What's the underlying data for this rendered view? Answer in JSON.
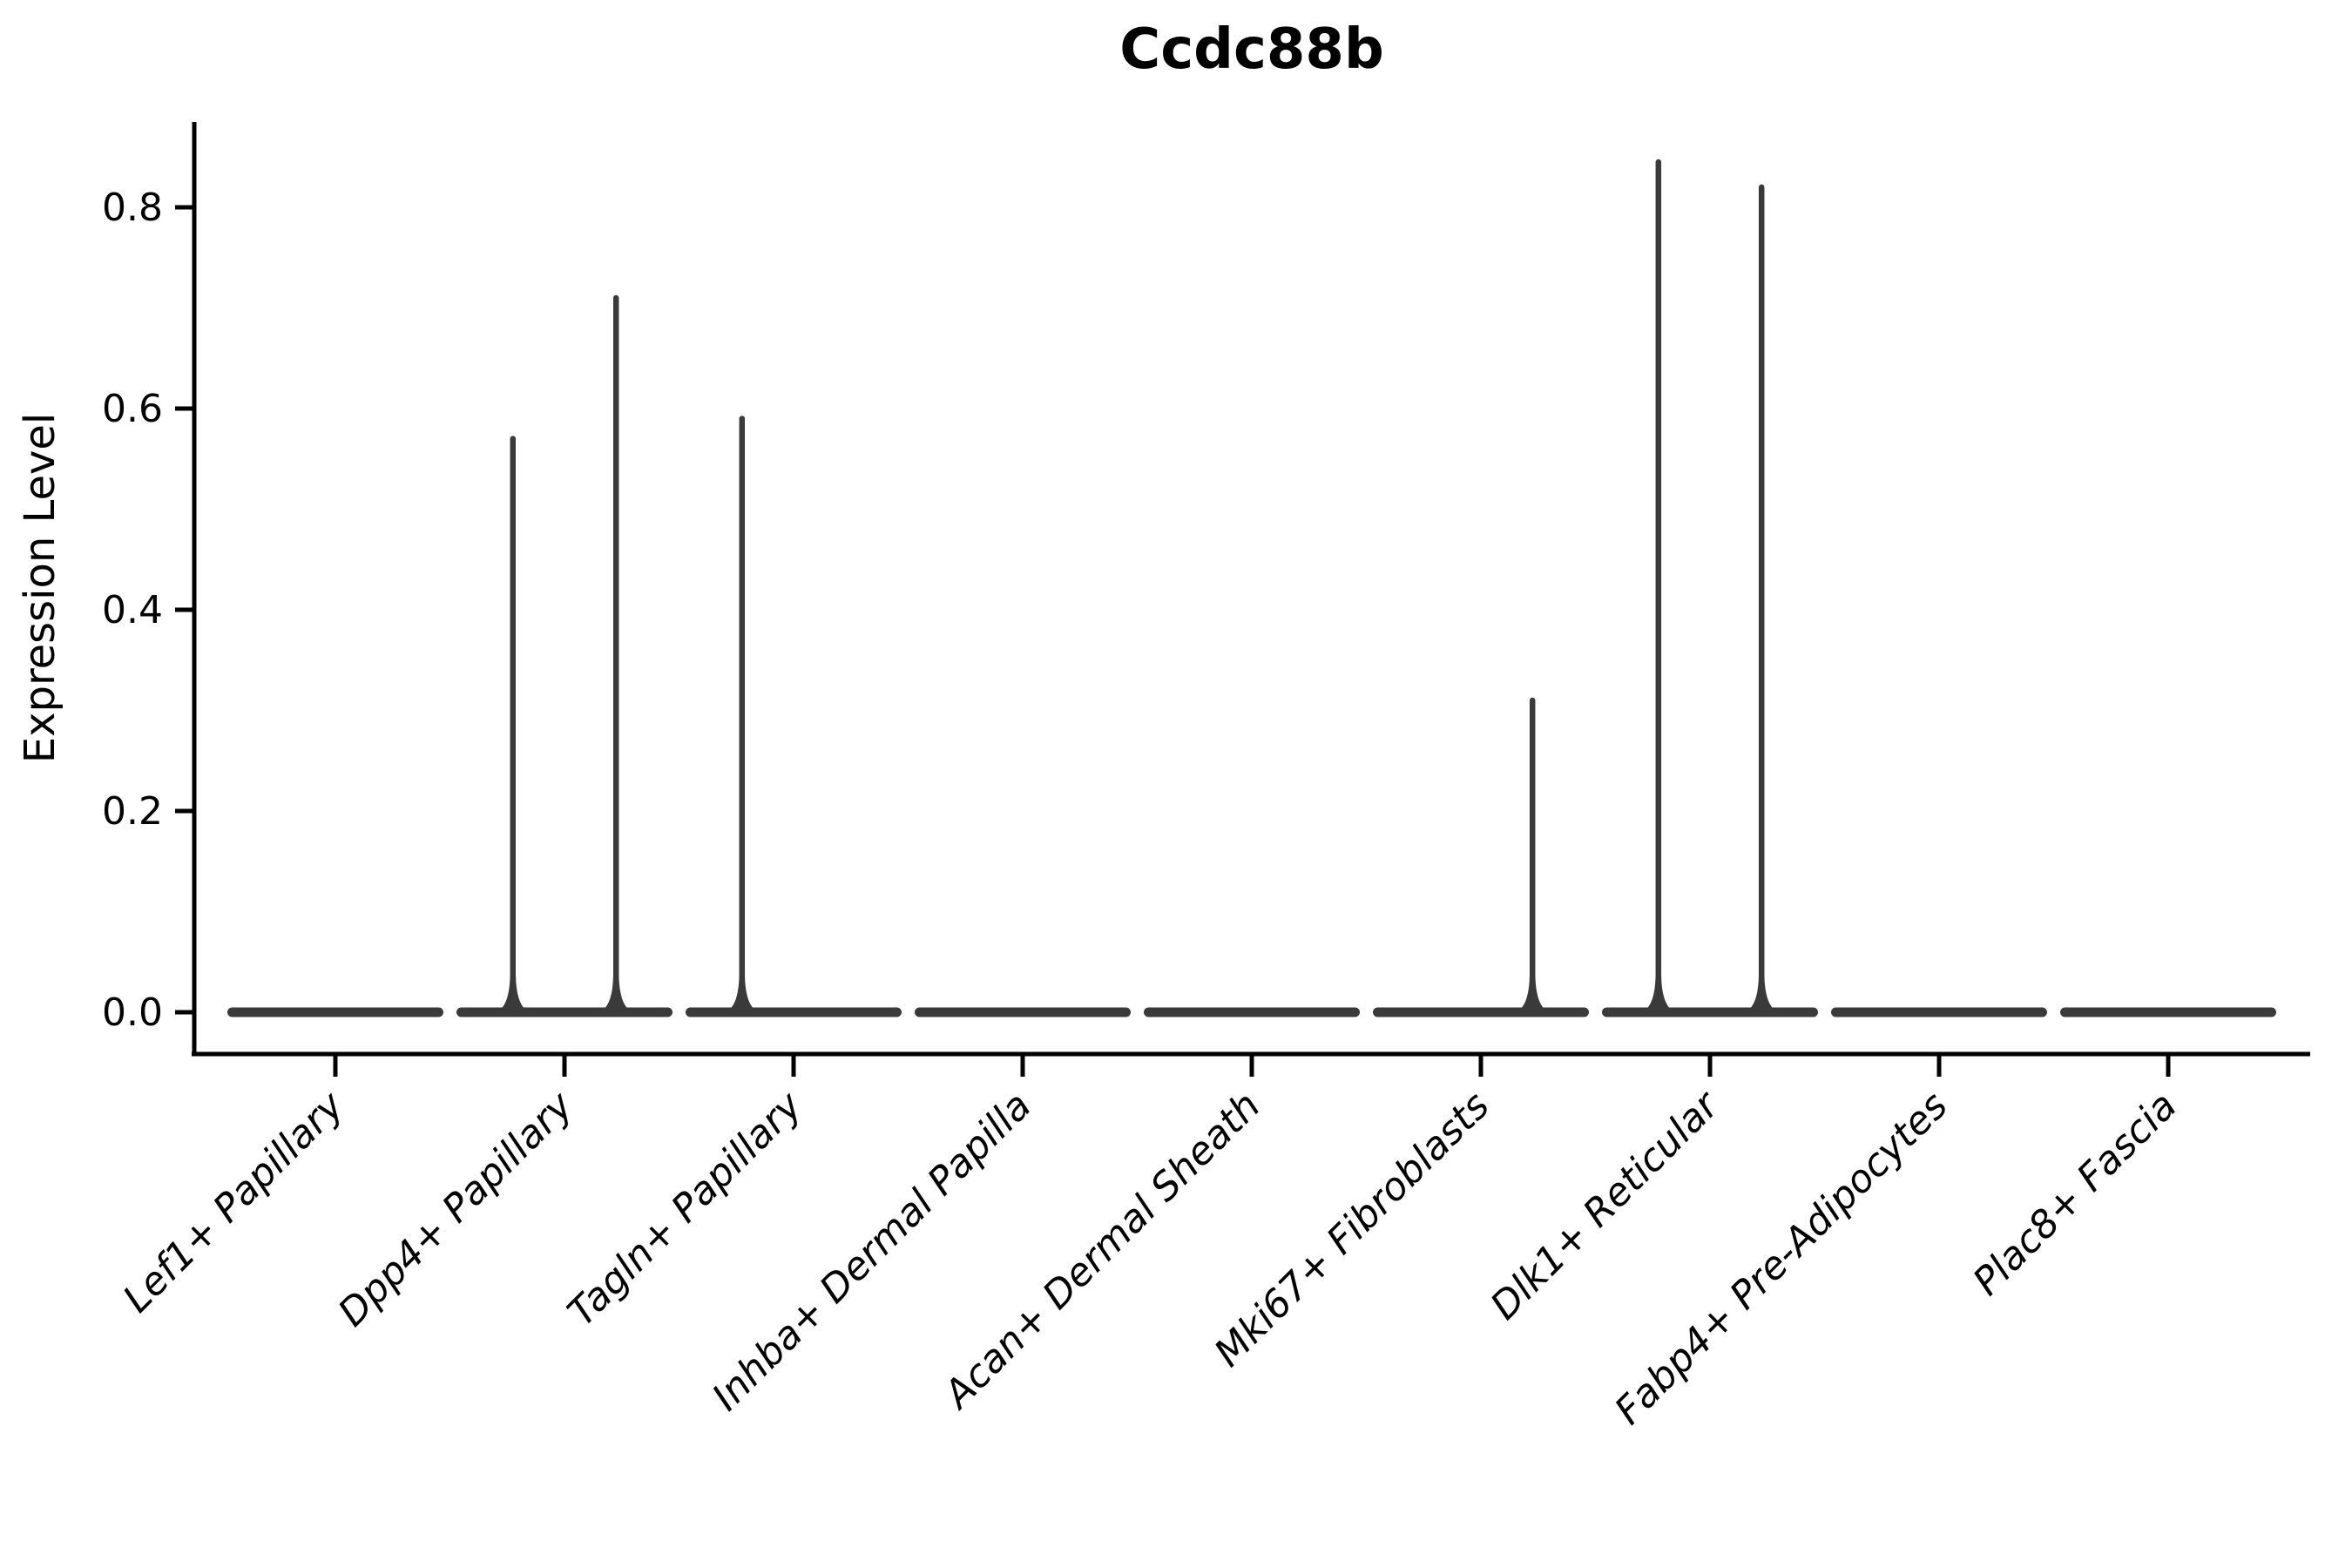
{
  "chart_data": {
    "type": "violin",
    "title": "Ccdc88b",
    "ylabel": "Expression Level",
    "xlabel": "",
    "legend": "none",
    "grid": false,
    "ylim": [
      -0.042,
      0.885
    ],
    "yticks": [
      "0.0",
      "0.2",
      "0.4",
      "0.6",
      "0.8"
    ],
    "ytick_values": [
      0.0,
      0.2,
      0.4,
      0.6,
      0.8
    ],
    "categories": [
      "Lef1+ Papillary",
      "Dpp4+ Papillary",
      "Tagln+ Papillary",
      "Inhba+ Dermal Papilla",
      "Acan+ Dermal Sheath",
      "Mki67+ Fibroblasts",
      "Dlk1+ Reticular",
      "Fabp4+ Pre-Adipocytes",
      "Plac8+ Fascia"
    ],
    "violins": [
      {
        "category": "Lef1+ Papillary",
        "baseline_value": 0.0,
        "spikes": []
      },
      {
        "category": "Dpp4+ Papillary",
        "baseline_value": 0.0,
        "spikes": [
          {
            "side": "left",
            "value": 0.57
          },
          {
            "side": "right",
            "value": 0.71
          }
        ]
      },
      {
        "category": "Tagln+ Papillary",
        "baseline_value": 0.0,
        "spikes": [
          {
            "side": "left",
            "value": 0.59
          }
        ]
      },
      {
        "category": "Inhba+ Dermal Papilla",
        "baseline_value": 0.0,
        "spikes": []
      },
      {
        "category": "Acan+ Dermal Sheath",
        "baseline_value": 0.0,
        "spikes": []
      },
      {
        "category": "Mki67+ Fibroblasts",
        "baseline_value": 0.0,
        "spikes": [
          {
            "side": "right",
            "value": 0.31
          }
        ]
      },
      {
        "category": "Dlk1+ Reticular",
        "baseline_value": 0.0,
        "spikes": [
          {
            "side": "left",
            "value": 0.845
          },
          {
            "side": "right",
            "value": 0.82
          }
        ]
      },
      {
        "category": "Fabp4+ Pre-Adipocytes",
        "baseline_value": 0.0,
        "spikes": []
      },
      {
        "category": "Plac8+ Fascia",
        "baseline_value": 0.0,
        "spikes": []
      }
    ],
    "colors": {
      "violin_line": "#3a3a3a",
      "axis": "#000000",
      "background": "#ffffff"
    }
  }
}
